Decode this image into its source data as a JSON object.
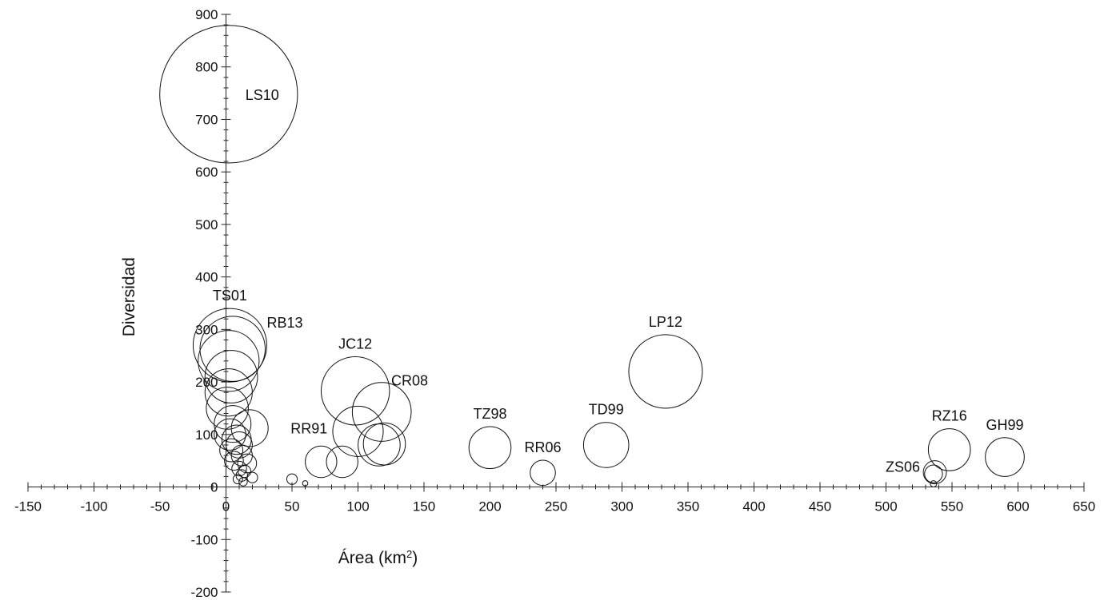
{
  "chart_data": {
    "type": "scatter",
    "title": "",
    "xlabel": "Área (km",
    "xlabel_superscript": "2",
    "xlabel_suffix": ")",
    "ylabel": "Diversidad",
    "xlim": [
      -150,
      650
    ],
    "ylim": [
      -200,
      900
    ],
    "x_ticks": [
      -150,
      -100,
      -50,
      0,
      50,
      100,
      150,
      200,
      250,
      300,
      350,
      400,
      450,
      500,
      550,
      600,
      650
    ],
    "y_ticks": [
      -200,
      -100,
      0,
      100,
      200,
      300,
      400,
      500,
      600,
      700,
      800,
      900
    ],
    "grid": false,
    "legend": "none",
    "bubble_size_unit": "radius in y-axis units",
    "points": [
      {
        "label": "LS10",
        "x": 2,
        "y": 748,
        "size": 131
      },
      {
        "label": "TS01",
        "x": 3,
        "y": 270,
        "size": 70
      },
      {
        "label": "RB13",
        "x": 5,
        "y": 263,
        "size": 62
      },
      {
        "label": "",
        "x": 2,
        "y": 240,
        "size": 58
      },
      {
        "label": "",
        "x": 4,
        "y": 210,
        "size": 50
      },
      {
        "label": "",
        "x": 2,
        "y": 180,
        "size": 45
      },
      {
        "label": "",
        "x": 1,
        "y": 150,
        "size": 40
      },
      {
        "label": "",
        "x": 5,
        "y": 120,
        "size": 35
      },
      {
        "label": "",
        "x": 18,
        "y": 112,
        "size": 35
      },
      {
        "label": "",
        "x": 3,
        "y": 100,
        "size": 30
      },
      {
        "label": "",
        "x": 8,
        "y": 90,
        "size": 28
      },
      {
        "label": "",
        "x": 10,
        "y": 80,
        "size": 25
      },
      {
        "label": "",
        "x": 4,
        "y": 70,
        "size": 22
      },
      {
        "label": "",
        "x": 12,
        "y": 60,
        "size": 20
      },
      {
        "label": "",
        "x": 6,
        "y": 50,
        "size": 18
      },
      {
        "label": "",
        "x": 16,
        "y": 45,
        "size": 18
      },
      {
        "label": "",
        "x": 10,
        "y": 35,
        "size": 14
      },
      {
        "label": "",
        "x": 14,
        "y": 30,
        "size": 12
      },
      {
        "label": "",
        "x": 12,
        "y": 22,
        "size": 11
      },
      {
        "label": "",
        "x": 20,
        "y": 18,
        "size": 10
      },
      {
        "label": "",
        "x": 9,
        "y": 15,
        "size": 9
      },
      {
        "label": "",
        "x": 13,
        "y": 10,
        "size": 8
      },
      {
        "label": "",
        "x": 50,
        "y": 15,
        "size": 10
      },
      {
        "label": "",
        "x": 60,
        "y": 7,
        "size": 5
      },
      {
        "label": "RR91",
        "x": 72,
        "y": 48,
        "size": 30
      },
      {
        "label": "",
        "x": 88,
        "y": 48,
        "size": 30
      },
      {
        "label": "JC12",
        "x": 98,
        "y": 183,
        "size": 65
      },
      {
        "label": "",
        "x": 100,
        "y": 106,
        "size": 48
      },
      {
        "label": "CR08",
        "x": 118,
        "y": 143,
        "size": 56
      },
      {
        "label": "",
        "x": 116,
        "y": 80,
        "size": 40
      },
      {
        "label": "",
        "x": 120,
        "y": 82,
        "size": 40
      },
      {
        "label": "TZ98",
        "x": 200,
        "y": 75,
        "size": 40
      },
      {
        "label": "RR06",
        "x": 240,
        "y": 27,
        "size": 24
      },
      {
        "label": "TD99",
        "x": 288,
        "y": 80,
        "size": 43
      },
      {
        "label": "LP12",
        "x": 333,
        "y": 220,
        "size": 70
      },
      {
        "label": "ZS06",
        "x": 537,
        "y": 28,
        "size": 22
      },
      {
        "label": "",
        "x": 536,
        "y": 25,
        "size": 17
      },
      {
        "label": "",
        "x": 536,
        "y": 6,
        "size": 6
      },
      {
        "label": "RZ16",
        "x": 548,
        "y": 71,
        "size": 40
      },
      {
        "label": "GH99",
        "x": 590,
        "y": 57,
        "size": 37
      }
    ]
  }
}
